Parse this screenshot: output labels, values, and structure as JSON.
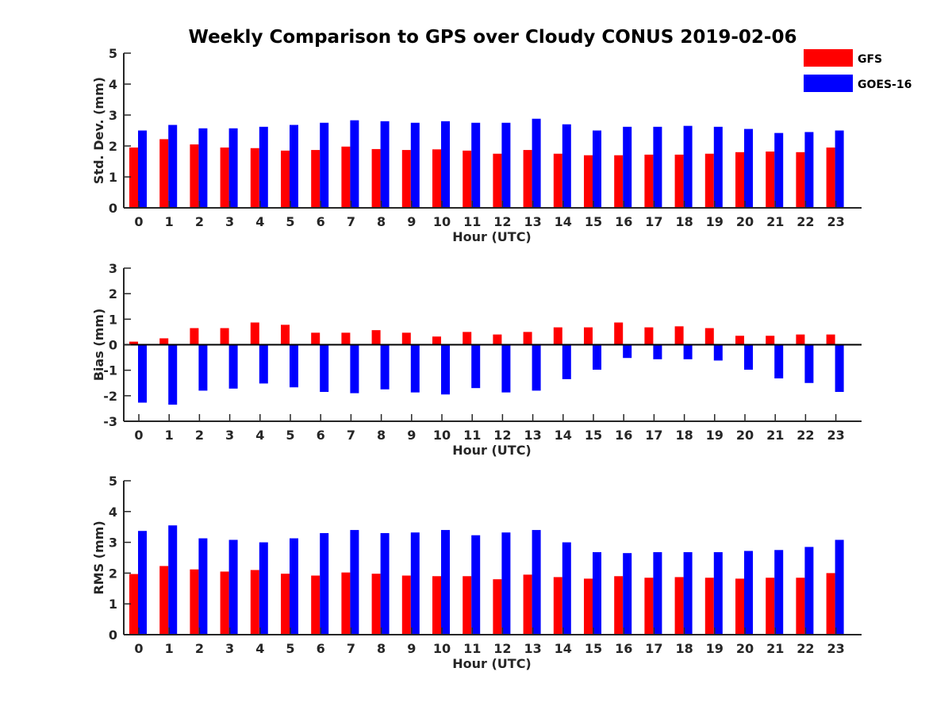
{
  "title": "Weekly Comparison to GPS over Cloudy CONUS 2019-02-06",
  "legend": {
    "placement": "top-right",
    "entries": [
      {
        "label": "GFS",
        "color": "#ff0000"
      },
      {
        "label": "GOES-16",
        "color": "#0000ff"
      }
    ]
  },
  "colors": {
    "gfs": "#ff0000",
    "goes16": "#0000ff",
    "axis": "#262626"
  },
  "chart_data": [
    {
      "type": "bar",
      "ylabel": "Std. Dev. (mm)",
      "xlabel": "Hour (UTC)",
      "ylim": [
        0,
        5
      ],
      "yticks": [
        0,
        1,
        2,
        3,
        4,
        5
      ],
      "categories": [
        "0",
        "1",
        "2",
        "3",
        "4",
        "5",
        "6",
        "7",
        "8",
        "9",
        "10",
        "11",
        "12",
        "13",
        "14",
        "15",
        "16",
        "17",
        "18",
        "19",
        "20",
        "21",
        "22",
        "23"
      ],
      "series": [
        {
          "name": "GFS",
          "values": [
            1.95,
            2.22,
            2.05,
            1.95,
            1.93,
            1.85,
            1.87,
            1.98,
            1.9,
            1.87,
            1.89,
            1.85,
            1.75,
            1.87,
            1.75,
            1.7,
            1.7,
            1.72,
            1.72,
            1.75,
            1.8,
            1.82,
            1.8,
            1.95
          ]
        },
        {
          "name": "GOES-16",
          "values": [
            2.5,
            2.68,
            2.57,
            2.57,
            2.62,
            2.68,
            2.75,
            2.83,
            2.8,
            2.75,
            2.8,
            2.75,
            2.75,
            2.88,
            2.7,
            2.5,
            2.62,
            2.62,
            2.65,
            2.62,
            2.55,
            2.42,
            2.45,
            2.5
          ]
        }
      ]
    },
    {
      "type": "bar",
      "ylabel": "Bias (mm)",
      "xlabel": "Hour (UTC)",
      "ylim": [
        -3,
        3
      ],
      "yticks": [
        -3,
        -2,
        -1,
        0,
        1,
        2,
        3
      ],
      "categories": [
        "0",
        "1",
        "2",
        "3",
        "4",
        "5",
        "6",
        "7",
        "8",
        "9",
        "10",
        "11",
        "12",
        "13",
        "14",
        "15",
        "16",
        "17",
        "18",
        "19",
        "20",
        "21",
        "22",
        "23"
      ],
      "series": [
        {
          "name": "GFS",
          "values": [
            0.12,
            0.25,
            0.65,
            0.65,
            0.87,
            0.78,
            0.47,
            0.47,
            0.57,
            0.47,
            0.32,
            0.5,
            0.4,
            0.5,
            0.68,
            0.68,
            0.87,
            0.68,
            0.72,
            0.65,
            0.35,
            0.35,
            0.4,
            0.4
          ]
        },
        {
          "name": "GOES-16",
          "values": [
            -2.27,
            -2.35,
            -1.8,
            -1.72,
            -1.52,
            -1.67,
            -1.85,
            -1.9,
            -1.75,
            -1.87,
            -1.95,
            -1.7,
            -1.87,
            -1.8,
            -1.35,
            -0.98,
            -0.52,
            -0.57,
            -0.57,
            -0.62,
            -0.98,
            -1.32,
            -1.5,
            -1.85
          ]
        }
      ]
    },
    {
      "type": "bar",
      "ylabel": "RMS (mm)",
      "xlabel": "Hour (UTC)",
      "ylim": [
        0,
        5
      ],
      "yticks": [
        0,
        1,
        2,
        3,
        4,
        5
      ],
      "categories": [
        "0",
        "1",
        "2",
        "3",
        "4",
        "5",
        "6",
        "7",
        "8",
        "9",
        "10",
        "11",
        "12",
        "13",
        "14",
        "15",
        "16",
        "17",
        "18",
        "19",
        "20",
        "21",
        "22",
        "23"
      ],
      "series": [
        {
          "name": "GFS",
          "values": [
            1.97,
            2.23,
            2.12,
            2.05,
            2.1,
            1.98,
            1.92,
            2.02,
            1.98,
            1.92,
            1.9,
            1.9,
            1.8,
            1.95,
            1.87,
            1.82,
            1.9,
            1.85,
            1.87,
            1.85,
            1.82,
            1.85,
            1.85,
            2.0
          ]
        },
        {
          "name": "GOES-16",
          "values": [
            3.37,
            3.55,
            3.13,
            3.08,
            3.0,
            3.13,
            3.3,
            3.4,
            3.3,
            3.32,
            3.4,
            3.23,
            3.32,
            3.4,
            3.0,
            2.68,
            2.65,
            2.68,
            2.68,
            2.68,
            2.72,
            2.75,
            2.85,
            3.08
          ]
        }
      ]
    }
  ]
}
